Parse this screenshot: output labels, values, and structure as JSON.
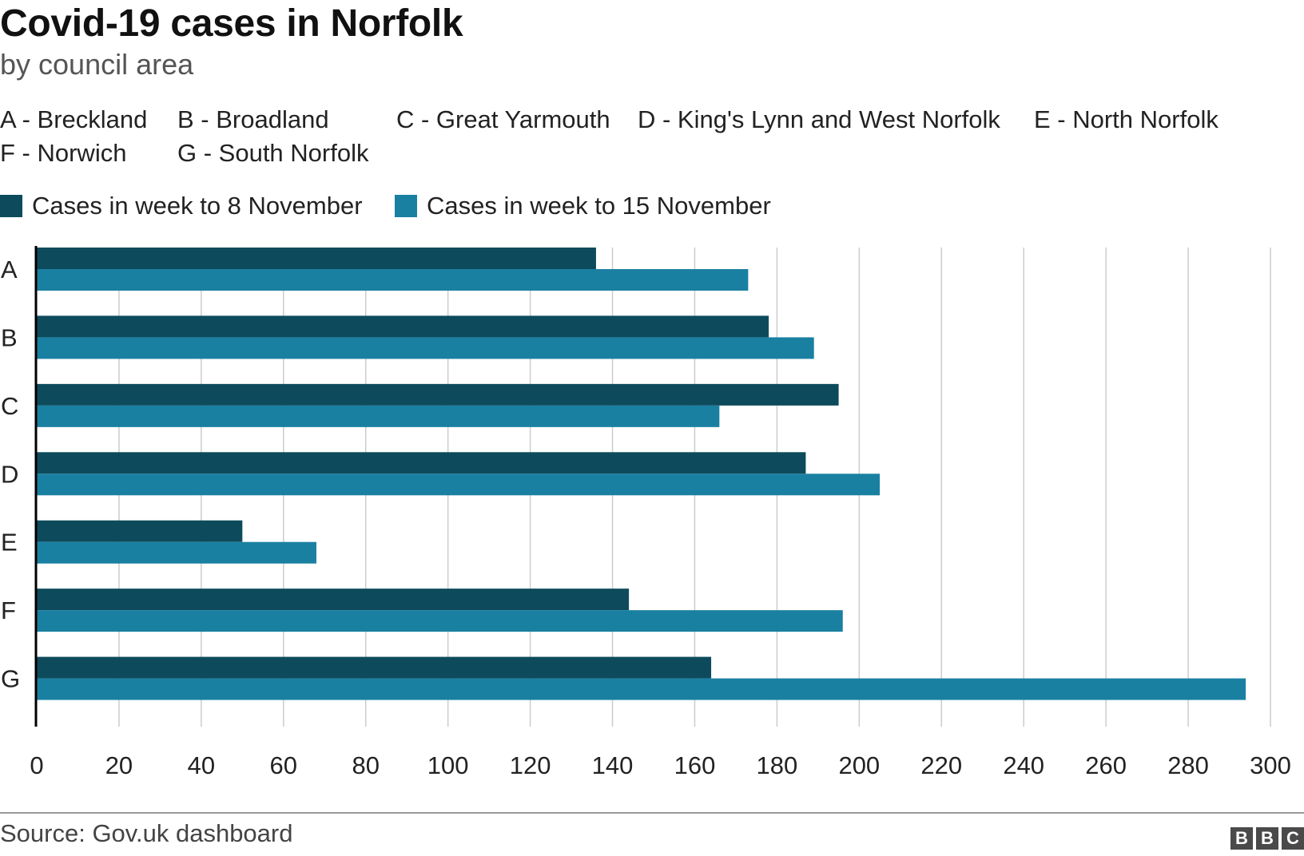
{
  "title": "Covid-19 cases in Norfolk",
  "subtitle": "by council area",
  "key": [
    "A - Breckland",
    "B - Broadland",
    "C - Great Yarmouth",
    "D - King's Lynn and West Norfolk",
    "E - North Norfolk",
    "F - Norwich",
    "G - South Norfolk"
  ],
  "source": "Source: Gov.uk dashboard",
  "logo": "BBC",
  "colors": {
    "series_8_nov": "#0d4b5c",
    "series_15_nov": "#1a80a1",
    "grid": "#cccccc",
    "axis": "#000000"
  },
  "chart_data": {
    "type": "bar",
    "orientation": "horizontal",
    "title": "Covid-19 cases in Norfolk",
    "subtitle": "by council area",
    "categories": [
      "A",
      "B",
      "C",
      "D",
      "E",
      "F",
      "G"
    ],
    "series": [
      {
        "name": "Cases in week to 8 November",
        "values": [
          136,
          178,
          195,
          187,
          50,
          144,
          164
        ]
      },
      {
        "name": "Cases in week to 15 November",
        "values": [
          173,
          189,
          166,
          205,
          68,
          196,
          294
        ]
      }
    ],
    "xlim": [
      0,
      300
    ],
    "xticks": [
      0,
      20,
      40,
      60,
      80,
      100,
      120,
      140,
      160,
      180,
      200,
      220,
      240,
      260,
      280,
      300
    ],
    "xlabel": "",
    "ylabel": "",
    "grid": "vertical",
    "legend": "top-left"
  }
}
